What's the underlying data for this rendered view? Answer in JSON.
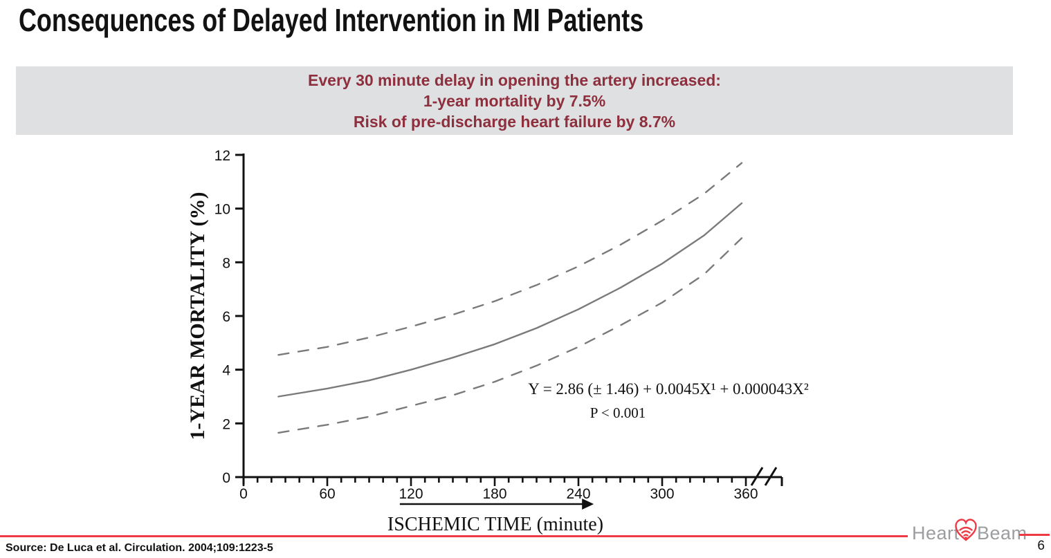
{
  "slide": {
    "title": "Consequences of Delayed Intervention in MI Patients",
    "page_number": "6",
    "source": "Source: De Luca et al. Circulation. 2004;109:1223-5"
  },
  "banner": {
    "line1": "Every 30 minute delay in opening the artery increased:",
    "line2": "1-year mortality by 7.5%",
    "line3": "Risk of pre-discharge heart failure by 8.7%",
    "bg_color": "#dfe0e2",
    "text_color": "#8e2f3e"
  },
  "logo": {
    "word1": "Heart",
    "word2": "Beam",
    "gray_color": "#9b9da0",
    "red_color": "#ee3a44"
  },
  "chart_data": {
    "type": "line",
    "title": "",
    "xlabel": "ISCHEMIC TIME (minute)",
    "ylabel": "1-YEAR MORTALITY (%)",
    "xlim": [
      0,
      385
    ],
    "ylim": [
      0,
      12
    ],
    "x_ticks": [
      0,
      60,
      120,
      180,
      240,
      300,
      360
    ],
    "x_minor_step": 10,
    "y_ticks": [
      0,
      2,
      4,
      6,
      8,
      10,
      12
    ],
    "axis_break_after_x": 362,
    "grid": false,
    "legend": "none",
    "line_color": "#7a7a7a",
    "axis_color": "#111111",
    "annotations": {
      "equation": "Y = 2.86 (± 1.46) + 0.0045X¹ + 0.000043X²",
      "p_value": "P < 0.001",
      "arrow": {
        "from_minute": 112,
        "to_minute": 251,
        "direction": "right"
      }
    },
    "x": [
      25,
      60,
      90,
      120,
      150,
      180,
      210,
      240,
      270,
      300,
      330,
      357
    ],
    "series": [
      {
        "name": "estimated 1-year mortality",
        "style": "solid",
        "values": [
          3.0,
          3.3,
          3.6,
          4.0,
          4.45,
          4.95,
          5.55,
          6.25,
          7.05,
          7.95,
          9.0,
          10.2
        ]
      },
      {
        "name": "upper 95% confidence bound",
        "style": "dashed",
        "values": [
          4.55,
          4.85,
          5.2,
          5.6,
          6.05,
          6.55,
          7.15,
          7.85,
          8.65,
          9.55,
          10.55,
          11.7
        ]
      },
      {
        "name": "lower 95% confidence bound",
        "style": "dashed",
        "values": [
          1.65,
          1.95,
          2.25,
          2.65,
          3.05,
          3.55,
          4.15,
          4.85,
          5.65,
          6.5,
          7.55,
          8.9
        ]
      }
    ]
  }
}
